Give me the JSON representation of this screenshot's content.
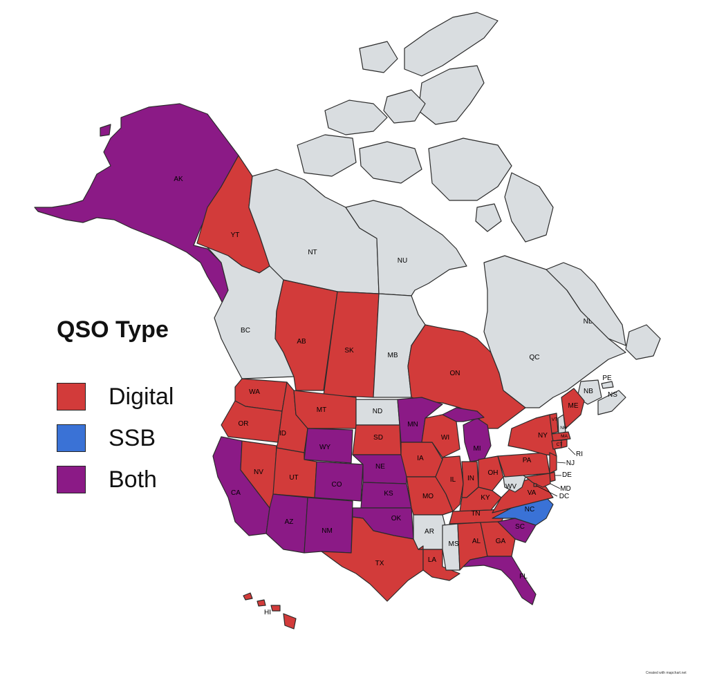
{
  "colors": {
    "digital": "#d23b3a",
    "ssb": "#3a72d6",
    "both": "#8b1a86",
    "none": "#d9dde0",
    "border": "#2b2b2b"
  },
  "legend": {
    "title": "QSO Type",
    "items": [
      {
        "label": "Digital",
        "color": "#d23b3a"
      },
      {
        "label": "SSB",
        "color": "#3a72d6"
      },
      {
        "label": "Both",
        "color": "#8b1a86"
      }
    ]
  },
  "credit": "Created with mapchart.net",
  "regions": {
    "AK": {
      "label": "AK",
      "type": "both"
    },
    "YT": {
      "label": "YT",
      "type": "digital"
    },
    "NT": {
      "label": "NT",
      "type": "none"
    },
    "NU": {
      "label": "NU",
      "type": "none"
    },
    "BC": {
      "label": "BC",
      "type": "none"
    },
    "AB": {
      "label": "AB",
      "type": "digital"
    },
    "SK": {
      "label": "SK",
      "type": "digital"
    },
    "MB": {
      "label": "MB",
      "type": "none"
    },
    "ON": {
      "label": "ON",
      "type": "digital"
    },
    "QC": {
      "label": "QC",
      "type": "none"
    },
    "NL": {
      "label": "NL",
      "type": "none"
    },
    "NB": {
      "label": "NB",
      "type": "none"
    },
    "PE": {
      "label": "PE",
      "type": "none"
    },
    "NS": {
      "label": "NS",
      "type": "none"
    },
    "WA": {
      "label": "WA",
      "type": "digital"
    },
    "OR": {
      "label": "OR",
      "type": "digital"
    },
    "CA": {
      "label": "CA",
      "type": "both"
    },
    "NV": {
      "label": "NV",
      "type": "digital"
    },
    "ID": {
      "label": "ID",
      "type": "digital"
    },
    "MT": {
      "label": "MT",
      "type": "digital"
    },
    "WY": {
      "label": "WY",
      "type": "both"
    },
    "UT": {
      "label": "UT",
      "type": "digital"
    },
    "CO": {
      "label": "CO",
      "type": "both"
    },
    "AZ": {
      "label": "AZ",
      "type": "both"
    },
    "NM": {
      "label": "NM",
      "type": "both"
    },
    "ND": {
      "label": "ND",
      "type": "none"
    },
    "SD": {
      "label": "SD",
      "type": "digital"
    },
    "NE": {
      "label": "NE",
      "type": "both"
    },
    "KS": {
      "label": "KS",
      "type": "both"
    },
    "OK": {
      "label": "OK",
      "type": "both"
    },
    "TX": {
      "label": "TX",
      "type": "digital"
    },
    "MN": {
      "label": "MN",
      "type": "both"
    },
    "IA": {
      "label": "IA",
      "type": "digital"
    },
    "MO": {
      "label": "MO",
      "type": "digital"
    },
    "AR": {
      "label": "AR",
      "type": "none"
    },
    "LA": {
      "label": "LA",
      "type": "digital"
    },
    "WI": {
      "label": "WI",
      "type": "digital"
    },
    "IL": {
      "label": "IL",
      "type": "digital"
    },
    "MI": {
      "label": "MI",
      "type": "both"
    },
    "IN": {
      "label": "IN",
      "type": "digital"
    },
    "OH": {
      "label": "OH",
      "type": "digital"
    },
    "KY": {
      "label": "KY",
      "type": "digital"
    },
    "TN": {
      "label": "TN",
      "type": "digital"
    },
    "MS": {
      "label": "MS",
      "type": "none"
    },
    "AL": {
      "label": "AL",
      "type": "digital"
    },
    "GA": {
      "label": "GA",
      "type": "digital"
    },
    "FL": {
      "label": "FL",
      "type": "both"
    },
    "SC": {
      "label": "SC",
      "type": "both"
    },
    "NC": {
      "label": "NC",
      "type": "ssb"
    },
    "VA": {
      "label": "VA",
      "type": "digital"
    },
    "WV": {
      "label": "WV",
      "type": "none"
    },
    "PA": {
      "label": "PA",
      "type": "digital"
    },
    "NY": {
      "label": "NY",
      "type": "digital"
    },
    "VT": {
      "label": "VT",
      "type": "digital"
    },
    "NH": {
      "label": "NH",
      "type": "none"
    },
    "ME": {
      "label": "ME",
      "type": "digital"
    },
    "MA": {
      "label": "MA",
      "type": "digital"
    },
    "RI": {
      "label": "RI",
      "type": "digital"
    },
    "CT": {
      "label": "CT",
      "type": "digital"
    },
    "NJ": {
      "label": "NJ",
      "type": "digital"
    },
    "DE": {
      "label": "DE",
      "type": "digital"
    },
    "MD": {
      "label": "MD",
      "type": "digital"
    },
    "DC": {
      "label": "DC",
      "type": "digital"
    },
    "HI": {
      "label": "HI",
      "type": "digital"
    }
  }
}
